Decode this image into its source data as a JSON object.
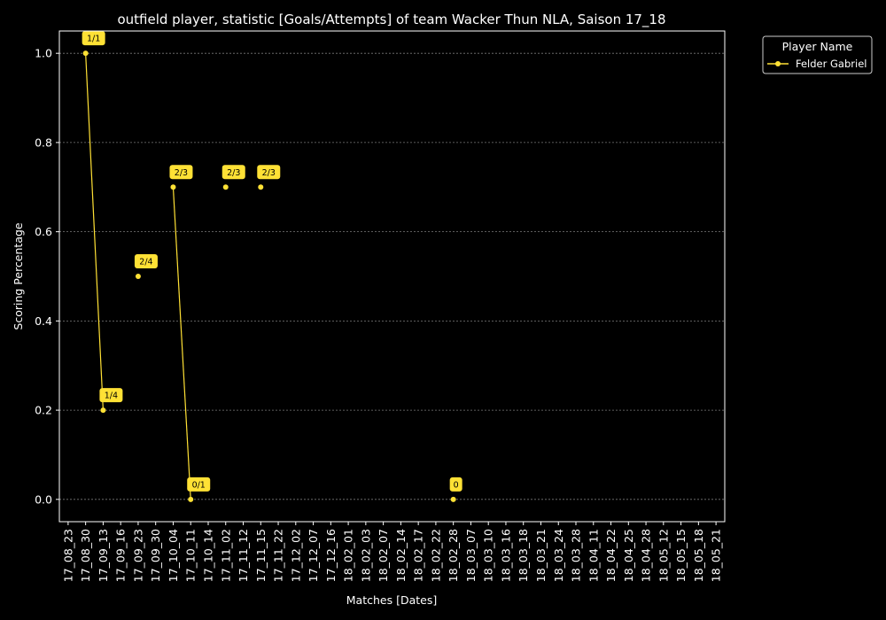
{
  "chart_data": {
    "type": "line",
    "title": "outfield player, statistic [Goals/Attempts] of team Wacker Thun NLA, Saison 17_18",
    "xlabel": "Matches [Dates]",
    "ylabel": "Scoring Percentage",
    "ylim": [
      -0.05,
      1.05
    ],
    "yticks": [
      0.0,
      0.2,
      0.4,
      0.6,
      0.8,
      1.0
    ],
    "ytick_labels": [
      "0.0",
      "0.2",
      "0.4",
      "0.6",
      "0.8",
      "1.0"
    ],
    "grid": "horizontal-dashed",
    "categories": [
      "17_08_23",
      "17_08_30",
      "17_09_13",
      "17_09_16",
      "17_09_23",
      "17_09_30",
      "17_10_04",
      "17_10_11",
      "17_10_14",
      "17_11_02",
      "17_11_12",
      "17_11_15",
      "17_11_22",
      "17_12_02",
      "17_12_07",
      "17_12_16",
      "18_02_01",
      "18_02_03",
      "18_02_07",
      "18_02_14",
      "18_02_17",
      "18_02_22",
      "18_02_28",
      "18_03_07",
      "18_03_10",
      "18_03_16",
      "18_03_18",
      "18_03_21",
      "18_03_24",
      "18_03_28",
      "18_04_11",
      "18_04_22",
      "18_04_25",
      "18_04_28",
      "18_05_12",
      "18_05_15",
      "18_05_18",
      "18_05_21"
    ],
    "legend": {
      "title": "Player Name",
      "position": "outside-top-right"
    },
    "series": [
      {
        "name": "Felder Gabriel",
        "color": "#ffe135",
        "values": [
          null,
          1.0,
          0.2,
          null,
          0.5,
          null,
          0.7,
          0.0,
          null,
          0.7,
          null,
          0.7,
          null,
          null,
          null,
          null,
          null,
          null,
          null,
          null,
          null,
          null,
          0.0,
          null,
          null,
          null,
          null,
          null,
          null,
          null,
          null,
          null,
          null,
          null,
          null,
          null,
          null,
          null
        ],
        "labels": [
          null,
          "1/1",
          "1/4",
          null,
          "2/4",
          null,
          "2/3",
          "0/1",
          null,
          "2/3",
          null,
          "2/3",
          null,
          null,
          null,
          null,
          null,
          null,
          null,
          null,
          null,
          null,
          "0",
          null,
          null,
          null,
          null,
          null,
          null,
          null,
          null,
          null,
          null,
          null,
          null,
          null,
          null,
          null
        ]
      }
    ]
  }
}
